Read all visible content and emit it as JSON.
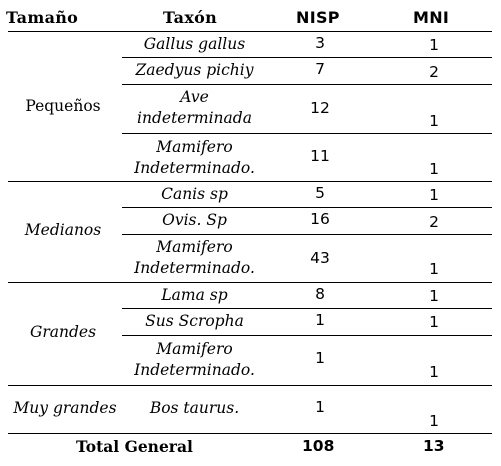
{
  "headers": {
    "size": "Tamaño",
    "taxon": "Taxón",
    "nisp": "NISP",
    "mni": "MNI"
  },
  "groups": [
    {
      "name": "Pequeños",
      "italic": false,
      "rows": [
        {
          "taxon": "Gallus gallus",
          "nisp": "3",
          "mni": "1"
        },
        {
          "taxon": "Zaedyus pichiy",
          "nisp": "7",
          "mni": "2"
        },
        {
          "taxon_lines": [
            "Ave",
            "indeterminada"
          ],
          "nisp": "12",
          "mni": "1"
        },
        {
          "taxon_lines": [
            "Mamifero",
            "Indeterminado."
          ],
          "nisp": "11",
          "mni": "1"
        }
      ]
    },
    {
      "name": "Medianos",
      "italic": true,
      "rows": [
        {
          "taxon": "Canis sp",
          "nisp": "5",
          "mni": "1"
        },
        {
          "taxon": "Ovis. Sp",
          "nisp": "16",
          "mni": "2"
        },
        {
          "taxon_lines": [
            "Mamifero",
            "Indeterminado."
          ],
          "nisp": "43",
          "mni": "1"
        }
      ]
    },
    {
      "name": "Grandes",
      "italic": true,
      "rows": [
        {
          "taxon": "Lama sp",
          "nisp": "8",
          "mni": "1"
        },
        {
          "taxon": "Sus Scropha",
          "nisp": "1",
          "mni": "1"
        },
        {
          "taxon_lines": [
            "Mamifero",
            "Indeterminado."
          ],
          "nisp": "1",
          "mni": "1"
        }
      ]
    },
    {
      "name": "Muy grandes",
      "italic": true,
      "rows": [
        {
          "taxon": "Bos taurus.",
          "nisp": "1",
          "mni": "1"
        }
      ]
    }
  ],
  "total": {
    "label": "Total General",
    "nisp": "108",
    "mni": "13"
  }
}
